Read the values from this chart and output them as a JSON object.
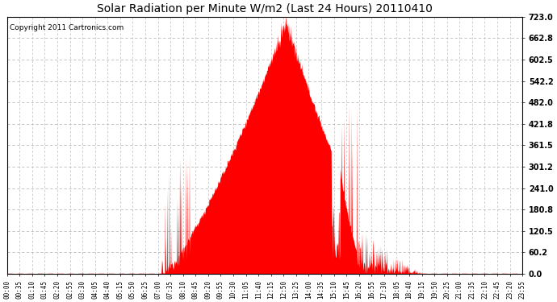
{
  "title": "Solar Radiation per Minute W/m2 (Last 24 Hours) 20110410",
  "copyright": "Copyright 2011 Cartronics.com",
  "fill_color": "#ff0000",
  "background_color": "#ffffff",
  "grid_color": "#bbbbbb",
  "dashed_line_color": "#ff0000",
  "y_ticks": [
    0.0,
    60.2,
    120.5,
    180.8,
    241.0,
    301.2,
    361.5,
    421.8,
    482.0,
    542.2,
    602.5,
    662.8,
    723.0
  ],
  "x_tick_labels": [
    "00:00",
    "00:35",
    "01:10",
    "01:45",
    "02:20",
    "02:55",
    "03:30",
    "04:05",
    "04:40",
    "05:15",
    "05:50",
    "06:25",
    "07:00",
    "07:35",
    "08:10",
    "08:45",
    "09:20",
    "09:55",
    "10:30",
    "11:05",
    "11:40",
    "12:15",
    "12:50",
    "13:25",
    "14:00",
    "14:35",
    "15:10",
    "15:45",
    "16:20",
    "16:55",
    "17:30",
    "18:05",
    "18:40",
    "19:15",
    "19:50",
    "20:25",
    "21:00",
    "21:35",
    "22:10",
    "22:45",
    "23:20",
    "23:55"
  ],
  "y_min": 0.0,
  "y_max": 723.0,
  "n_points": 1440,
  "sunrise_hour": 7.2,
  "sunset_hour": 19.4,
  "peak_hour": 13.0,
  "peak_value": 710
}
